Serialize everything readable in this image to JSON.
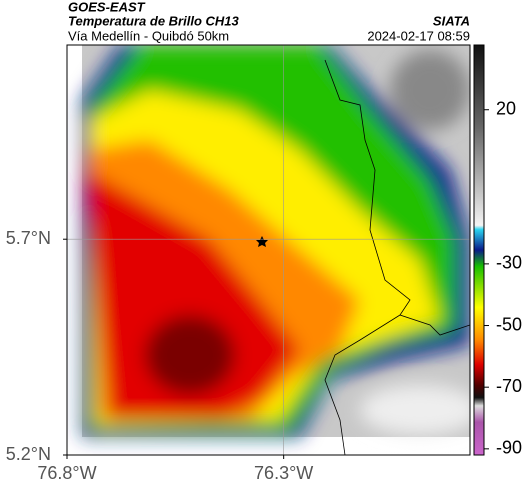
{
  "header": {
    "source": "GOES-EAST",
    "title": "Temperatura de Brillo CH13",
    "org": "SIATA",
    "subtitle": "Vía Medellín - Quibdó 50km",
    "timestamp": "2024-02-17 08:59"
  },
  "map": {
    "xlim": [
      -76.8,
      -75.87
    ],
    "ylim": [
      5.2,
      6.15
    ],
    "xticks": [
      {
        "value": -76.8,
        "label": "76.8°W"
      },
      {
        "value": -76.3,
        "label": "76.3°W"
      }
    ],
    "yticks": [
      {
        "value": 5.7,
        "label": "5.7°N"
      },
      {
        "value": 5.2,
        "label": "5.2°N"
      }
    ]
  },
  "colorbar": {
    "lim": [
      41,
      -92
    ],
    "ticks": [
      20,
      -30,
      -50,
      -70,
      -90
    ]
  }
}
